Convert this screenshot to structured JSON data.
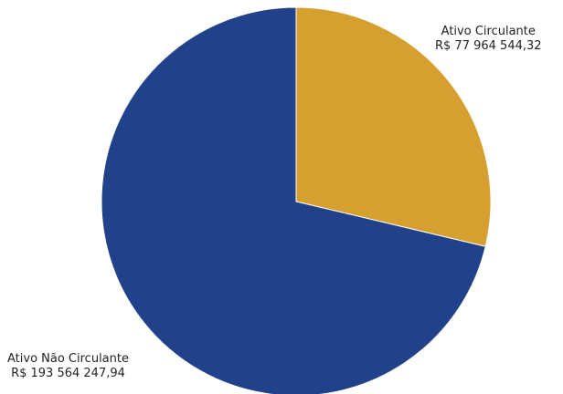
{
  "chart_data": {
    "type": "pie",
    "slices": [
      {
        "name": "Ativo Circulante",
        "value": 77964544.32,
        "value_label": "R$ 77 964 544,32",
        "color": "#d6a030"
      },
      {
        "name": "Ativo Não Circulante",
        "value": 193564247.94,
        "value_label": "R$ 193 564 247,94",
        "color": "#21428a"
      }
    ],
    "start_angle": "12 o'clock",
    "direction": "clockwise",
    "legend": "none"
  }
}
